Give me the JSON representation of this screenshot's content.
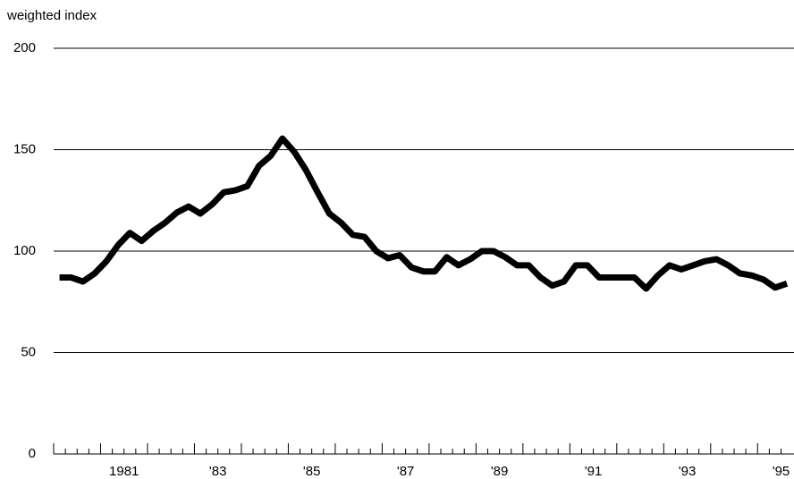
{
  "chart_data": {
    "type": "line",
    "y_label": "weighted index",
    "x": [
      1980.125,
      1980.375,
      1980.625,
      1980.875,
      1981.125,
      1981.375,
      1981.625,
      1981.875,
      1982.125,
      1982.375,
      1982.625,
      1982.875,
      1983.125,
      1983.375,
      1983.625,
      1983.875,
      1984.125,
      1984.375,
      1984.625,
      1984.875,
      1985.125,
      1985.375,
      1985.625,
      1985.875,
      1986.125,
      1986.375,
      1986.625,
      1986.875,
      1987.125,
      1987.375,
      1987.625,
      1987.875,
      1988.125,
      1988.375,
      1988.625,
      1988.875,
      1989.125,
      1989.375,
      1989.625,
      1989.875,
      1990.125,
      1990.375,
      1990.625,
      1990.875,
      1991.125,
      1991.375,
      1991.625,
      1991.875,
      1992.125,
      1992.375,
      1992.625,
      1992.875,
      1993.125,
      1993.375,
      1993.625,
      1993.875,
      1994.125,
      1994.375,
      1994.625,
      1994.875,
      1995.125,
      1995.375,
      1995.625
    ],
    "series": [
      {
        "color": "#000000",
        "values": [
          87,
          87,
          85,
          89,
          95,
          103,
          109,
          105,
          110,
          114,
          119,
          122,
          118.5,
          123,
          129,
          130,
          132,
          142,
          147,
          155.5,
          149,
          140,
          129,
          118.5,
          114,
          108,
          107,
          100,
          96.5,
          98,
          92,
          90,
          90,
          97,
          93,
          96,
          100,
          100,
          97,
          93,
          93,
          87,
          83,
          85,
          93,
          93,
          87,
          87,
          87,
          87,
          81.5,
          88,
          93,
          91,
          93,
          95,
          96,
          93,
          89,
          88,
          86,
          82,
          84
        ]
      }
    ],
    "xlim": [
      1980,
      1995.7
    ],
    "xticks": [
      {
        "value": 1981.5,
        "label": "1981"
      },
      {
        "value": 1983.5,
        "label": "'83"
      },
      {
        "value": 1985.5,
        "label": "'85"
      },
      {
        "value": 1987.5,
        "label": "'87"
      },
      {
        "value": 1989.5,
        "label": "'89"
      },
      {
        "value": 1991.5,
        "label": "'91"
      },
      {
        "value": 1993.5,
        "label": "'93"
      },
      {
        "value": 1995.5,
        "label": "'95"
      }
    ],
    "ylim": [
      0,
      200
    ],
    "yticks": [
      0,
      50,
      100,
      150,
      200
    ],
    "grid": true
  }
}
